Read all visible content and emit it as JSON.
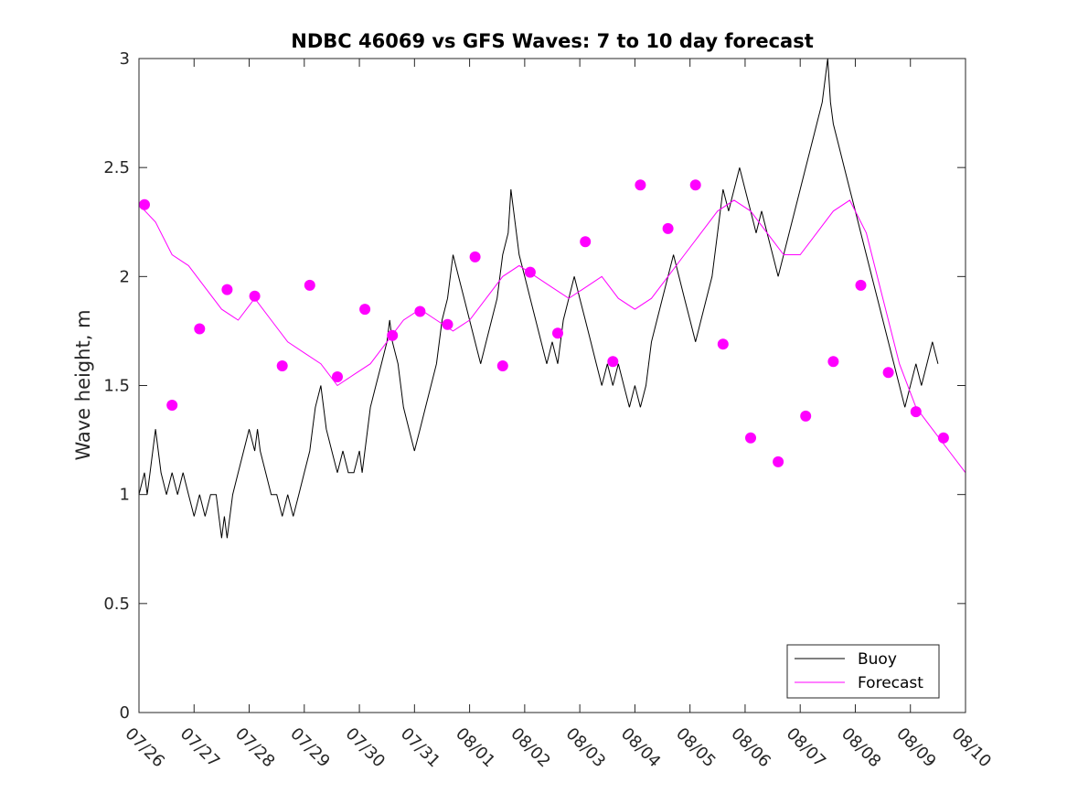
{
  "chart_data": {
    "type": "line",
    "title": "NDBC 46069 vs GFS Waves: 7 to 10 day forecast",
    "xlabel": "",
    "ylabel": "Wave height, m",
    "xlim": [
      0,
      15
    ],
    "ylim": [
      0,
      3
    ],
    "x_unit": "days since 07/26",
    "x_tick_labels": [
      "07/26",
      "07/27",
      "07/28",
      "07/29",
      "07/30",
      "07/31",
      "08/01",
      "08/02",
      "08/03",
      "08/04",
      "08/05",
      "08/06",
      "08/07",
      "08/08",
      "08/09",
      "08/10"
    ],
    "y_ticks": [
      0,
      0.5,
      1,
      1.5,
      2,
      2.5,
      3
    ],
    "y_tick_labels": [
      "0",
      "0.5",
      "1",
      "1.5",
      "2",
      "2.5",
      "3"
    ],
    "grid": false,
    "legend_position": "bottom-right",
    "colors": {
      "buoy": "#000000",
      "forecast": "#ff00ff"
    },
    "series": [
      {
        "name": "Buoy",
        "points": [
          [
            0,
            1.0
          ],
          [
            0.1,
            1.1
          ],
          [
            0.15,
            1.0
          ],
          [
            0.2,
            1.1
          ],
          [
            0.25,
            1.2
          ],
          [
            0.3,
            1.3
          ],
          [
            0.35,
            1.2
          ],
          [
            0.4,
            1.1
          ],
          [
            0.5,
            1.0
          ],
          [
            0.6,
            1.1
          ],
          [
            0.7,
            1.0
          ],
          [
            0.8,
            1.1
          ],
          [
            0.9,
            1.0
          ],
          [
            1.0,
            0.9
          ],
          [
            1.1,
            1.0
          ],
          [
            1.2,
            0.9
          ],
          [
            1.3,
            1.0
          ],
          [
            1.4,
            1.0
          ],
          [
            1.45,
            0.9
          ],
          [
            1.5,
            0.8
          ],
          [
            1.55,
            0.9
          ],
          [
            1.6,
            0.8
          ],
          [
            1.7,
            1.0
          ],
          [
            1.8,
            1.1
          ],
          [
            1.9,
            1.2
          ],
          [
            2.0,
            1.3
          ],
          [
            2.1,
            1.2
          ],
          [
            2.15,
            1.3
          ],
          [
            2.2,
            1.2
          ],
          [
            2.3,
            1.1
          ],
          [
            2.4,
            1.0
          ],
          [
            2.5,
            1.0
          ],
          [
            2.6,
            0.9
          ],
          [
            2.7,
            1.0
          ],
          [
            2.8,
            0.9
          ],
          [
            2.9,
            1.0
          ],
          [
            3.0,
            1.1
          ],
          [
            3.1,
            1.2
          ],
          [
            3.15,
            1.3
          ],
          [
            3.2,
            1.4
          ],
          [
            3.3,
            1.5
          ],
          [
            3.35,
            1.4
          ],
          [
            3.4,
            1.3
          ],
          [
            3.5,
            1.2
          ],
          [
            3.6,
            1.1
          ],
          [
            3.7,
            1.2
          ],
          [
            3.8,
            1.1
          ],
          [
            3.9,
            1.1
          ],
          [
            4.0,
            1.2
          ],
          [
            4.05,
            1.1
          ],
          [
            4.1,
            1.2
          ],
          [
            4.15,
            1.3
          ],
          [
            4.2,
            1.4
          ],
          [
            4.3,
            1.5
          ],
          [
            4.4,
            1.6
          ],
          [
            4.5,
            1.7
          ],
          [
            4.55,
            1.8
          ],
          [
            4.6,
            1.7
          ],
          [
            4.7,
            1.6
          ],
          [
            4.8,
            1.4
          ],
          [
            4.9,
            1.3
          ],
          [
            5.0,
            1.2
          ],
          [
            5.1,
            1.3
          ],
          [
            5.2,
            1.4
          ],
          [
            5.3,
            1.5
          ],
          [
            5.4,
            1.6
          ],
          [
            5.5,
            1.8
          ],
          [
            5.6,
            1.9
          ],
          [
            5.7,
            2.1
          ],
          [
            5.8,
            2.0
          ],
          [
            5.9,
            1.9
          ],
          [
            6.0,
            1.8
          ],
          [
            6.1,
            1.7
          ],
          [
            6.2,
            1.6
          ],
          [
            6.3,
            1.7
          ],
          [
            6.4,
            1.8
          ],
          [
            6.5,
            1.9
          ],
          [
            6.6,
            2.1
          ],
          [
            6.7,
            2.2
          ],
          [
            6.75,
            2.4
          ],
          [
            6.8,
            2.3
          ],
          [
            6.9,
            2.1
          ],
          [
            7.0,
            2.0
          ],
          [
            7.1,
            1.9
          ],
          [
            7.2,
            1.8
          ],
          [
            7.3,
            1.7
          ],
          [
            7.4,
            1.6
          ],
          [
            7.5,
            1.7
          ],
          [
            7.6,
            1.6
          ],
          [
            7.7,
            1.8
          ],
          [
            7.8,
            1.9
          ],
          [
            7.9,
            2.0
          ],
          [
            8.0,
            1.9
          ],
          [
            8.1,
            1.8
          ],
          [
            8.2,
            1.7
          ],
          [
            8.3,
            1.6
          ],
          [
            8.4,
            1.5
          ],
          [
            8.5,
            1.6
          ],
          [
            8.6,
            1.5
          ],
          [
            8.7,
            1.6
          ],
          [
            8.8,
            1.5
          ],
          [
            8.9,
            1.4
          ],
          [
            9.0,
            1.5
          ],
          [
            9.1,
            1.4
          ],
          [
            9.2,
            1.5
          ],
          [
            9.3,
            1.7
          ],
          [
            9.4,
            1.8
          ],
          [
            9.5,
            1.9
          ],
          [
            9.6,
            2.0
          ],
          [
            9.7,
            2.1
          ],
          [
            9.8,
            2.0
          ],
          [
            9.9,
            1.9
          ],
          [
            10.0,
            1.8
          ],
          [
            10.1,
            1.7
          ],
          [
            10.2,
            1.8
          ],
          [
            10.3,
            1.9
          ],
          [
            10.4,
            2.0
          ],
          [
            10.5,
            2.2
          ],
          [
            10.6,
            2.4
          ],
          [
            10.7,
            2.3
          ],
          [
            10.8,
            2.4
          ],
          [
            10.9,
            2.5
          ],
          [
            11.0,
            2.4
          ],
          [
            11.1,
            2.3
          ],
          [
            11.2,
            2.2
          ],
          [
            11.3,
            2.3
          ],
          [
            11.4,
            2.2
          ],
          [
            11.5,
            2.1
          ],
          [
            11.6,
            2.0
          ],
          [
            11.7,
            2.1
          ],
          [
            11.8,
            2.2
          ],
          [
            11.9,
            2.3
          ],
          [
            12.0,
            2.4
          ],
          [
            12.1,
            2.5
          ],
          [
            12.2,
            2.6
          ],
          [
            12.3,
            2.7
          ],
          [
            12.4,
            2.8
          ],
          [
            12.45,
            2.9
          ],
          [
            12.5,
            3.0
          ],
          [
            12.55,
            2.8
          ],
          [
            12.6,
            2.7
          ],
          [
            12.7,
            2.6
          ],
          [
            12.8,
            2.5
          ],
          [
            12.9,
            2.4
          ],
          [
            13.0,
            2.3
          ],
          [
            13.1,
            2.2
          ],
          [
            13.2,
            2.1
          ],
          [
            13.3,
            2.0
          ],
          [
            13.4,
            1.9
          ],
          [
            13.5,
            1.8
          ],
          [
            13.6,
            1.7
          ],
          [
            13.7,
            1.6
          ],
          [
            13.8,
            1.5
          ],
          [
            13.9,
            1.4
          ],
          [
            14.0,
            1.5
          ],
          [
            14.1,
            1.6
          ],
          [
            14.2,
            1.5
          ],
          [
            14.3,
            1.6
          ],
          [
            14.4,
            1.7
          ],
          [
            14.5,
            1.6
          ]
        ]
      },
      {
        "name": "Forecast",
        "points": [
          [
            0,
            2.33
          ],
          [
            0.3,
            2.25
          ],
          [
            0.6,
            2.1
          ],
          [
            0.9,
            2.05
          ],
          [
            1.2,
            1.95
          ],
          [
            1.5,
            1.85
          ],
          [
            1.8,
            1.8
          ],
          [
            2.1,
            1.9
          ],
          [
            2.4,
            1.8
          ],
          [
            2.7,
            1.7
          ],
          [
            3.0,
            1.65
          ],
          [
            3.3,
            1.6
          ],
          [
            3.6,
            1.5
          ],
          [
            3.9,
            1.55
          ],
          [
            4.2,
            1.6
          ],
          [
            4.5,
            1.7
          ],
          [
            4.8,
            1.8
          ],
          [
            5.1,
            1.85
          ],
          [
            5.4,
            1.8
          ],
          [
            5.7,
            1.75
          ],
          [
            6.0,
            1.8
          ],
          [
            6.3,
            1.9
          ],
          [
            6.6,
            2.0
          ],
          [
            6.9,
            2.05
          ],
          [
            7.2,
            2.0
          ],
          [
            7.5,
            1.95
          ],
          [
            7.8,
            1.9
          ],
          [
            8.1,
            1.95
          ],
          [
            8.4,
            2.0
          ],
          [
            8.7,
            1.9
          ],
          [
            9.0,
            1.85
          ],
          [
            9.3,
            1.9
          ],
          [
            9.6,
            2.0
          ],
          [
            9.9,
            2.1
          ],
          [
            10.2,
            2.2
          ],
          [
            10.5,
            2.3
          ],
          [
            10.8,
            2.35
          ],
          [
            11.1,
            2.3
          ],
          [
            11.4,
            2.2
          ],
          [
            11.7,
            2.1
          ],
          [
            12.0,
            2.1
          ],
          [
            12.3,
            2.2
          ],
          [
            12.6,
            2.3
          ],
          [
            12.9,
            2.35
          ],
          [
            13.2,
            2.2
          ],
          [
            13.5,
            1.9
          ],
          [
            13.8,
            1.6
          ],
          [
            14.1,
            1.4
          ],
          [
            14.4,
            1.3
          ],
          [
            14.7,
            1.2
          ],
          [
            15.0,
            1.1
          ]
        ]
      }
    ],
    "forecast_markers": [
      [
        0.1,
        2.33
      ],
      [
        0.6,
        1.41
      ],
      [
        1.1,
        1.76
      ],
      [
        1.6,
        1.94
      ],
      [
        2.1,
        1.91
      ],
      [
        2.6,
        1.59
      ],
      [
        3.1,
        1.96
      ],
      [
        3.6,
        1.54
      ],
      [
        4.1,
        1.85
      ],
      [
        4.6,
        1.73
      ],
      [
        5.1,
        1.84
      ],
      [
        5.6,
        1.78
      ],
      [
        6.1,
        2.09
      ],
      [
        6.6,
        1.59
      ],
      [
        7.1,
        2.02
      ],
      [
        7.6,
        1.74
      ],
      [
        8.1,
        2.16
      ],
      [
        8.6,
        1.61
      ],
      [
        9.1,
        2.42
      ],
      [
        9.6,
        2.22
      ],
      [
        10.1,
        2.42
      ],
      [
        10.6,
        1.69
      ],
      [
        11.1,
        1.26
      ],
      [
        11.6,
        1.15
      ],
      [
        12.1,
        1.36
      ],
      [
        12.6,
        1.61
      ],
      [
        13.1,
        1.96
      ],
      [
        13.6,
        1.56
      ],
      [
        14.1,
        1.38
      ],
      [
        14.6,
        1.26
      ]
    ]
  },
  "legend": {
    "items": [
      {
        "label": "Buoy",
        "color": "#000000"
      },
      {
        "label": "Forecast",
        "color": "#ff00ff"
      }
    ]
  }
}
